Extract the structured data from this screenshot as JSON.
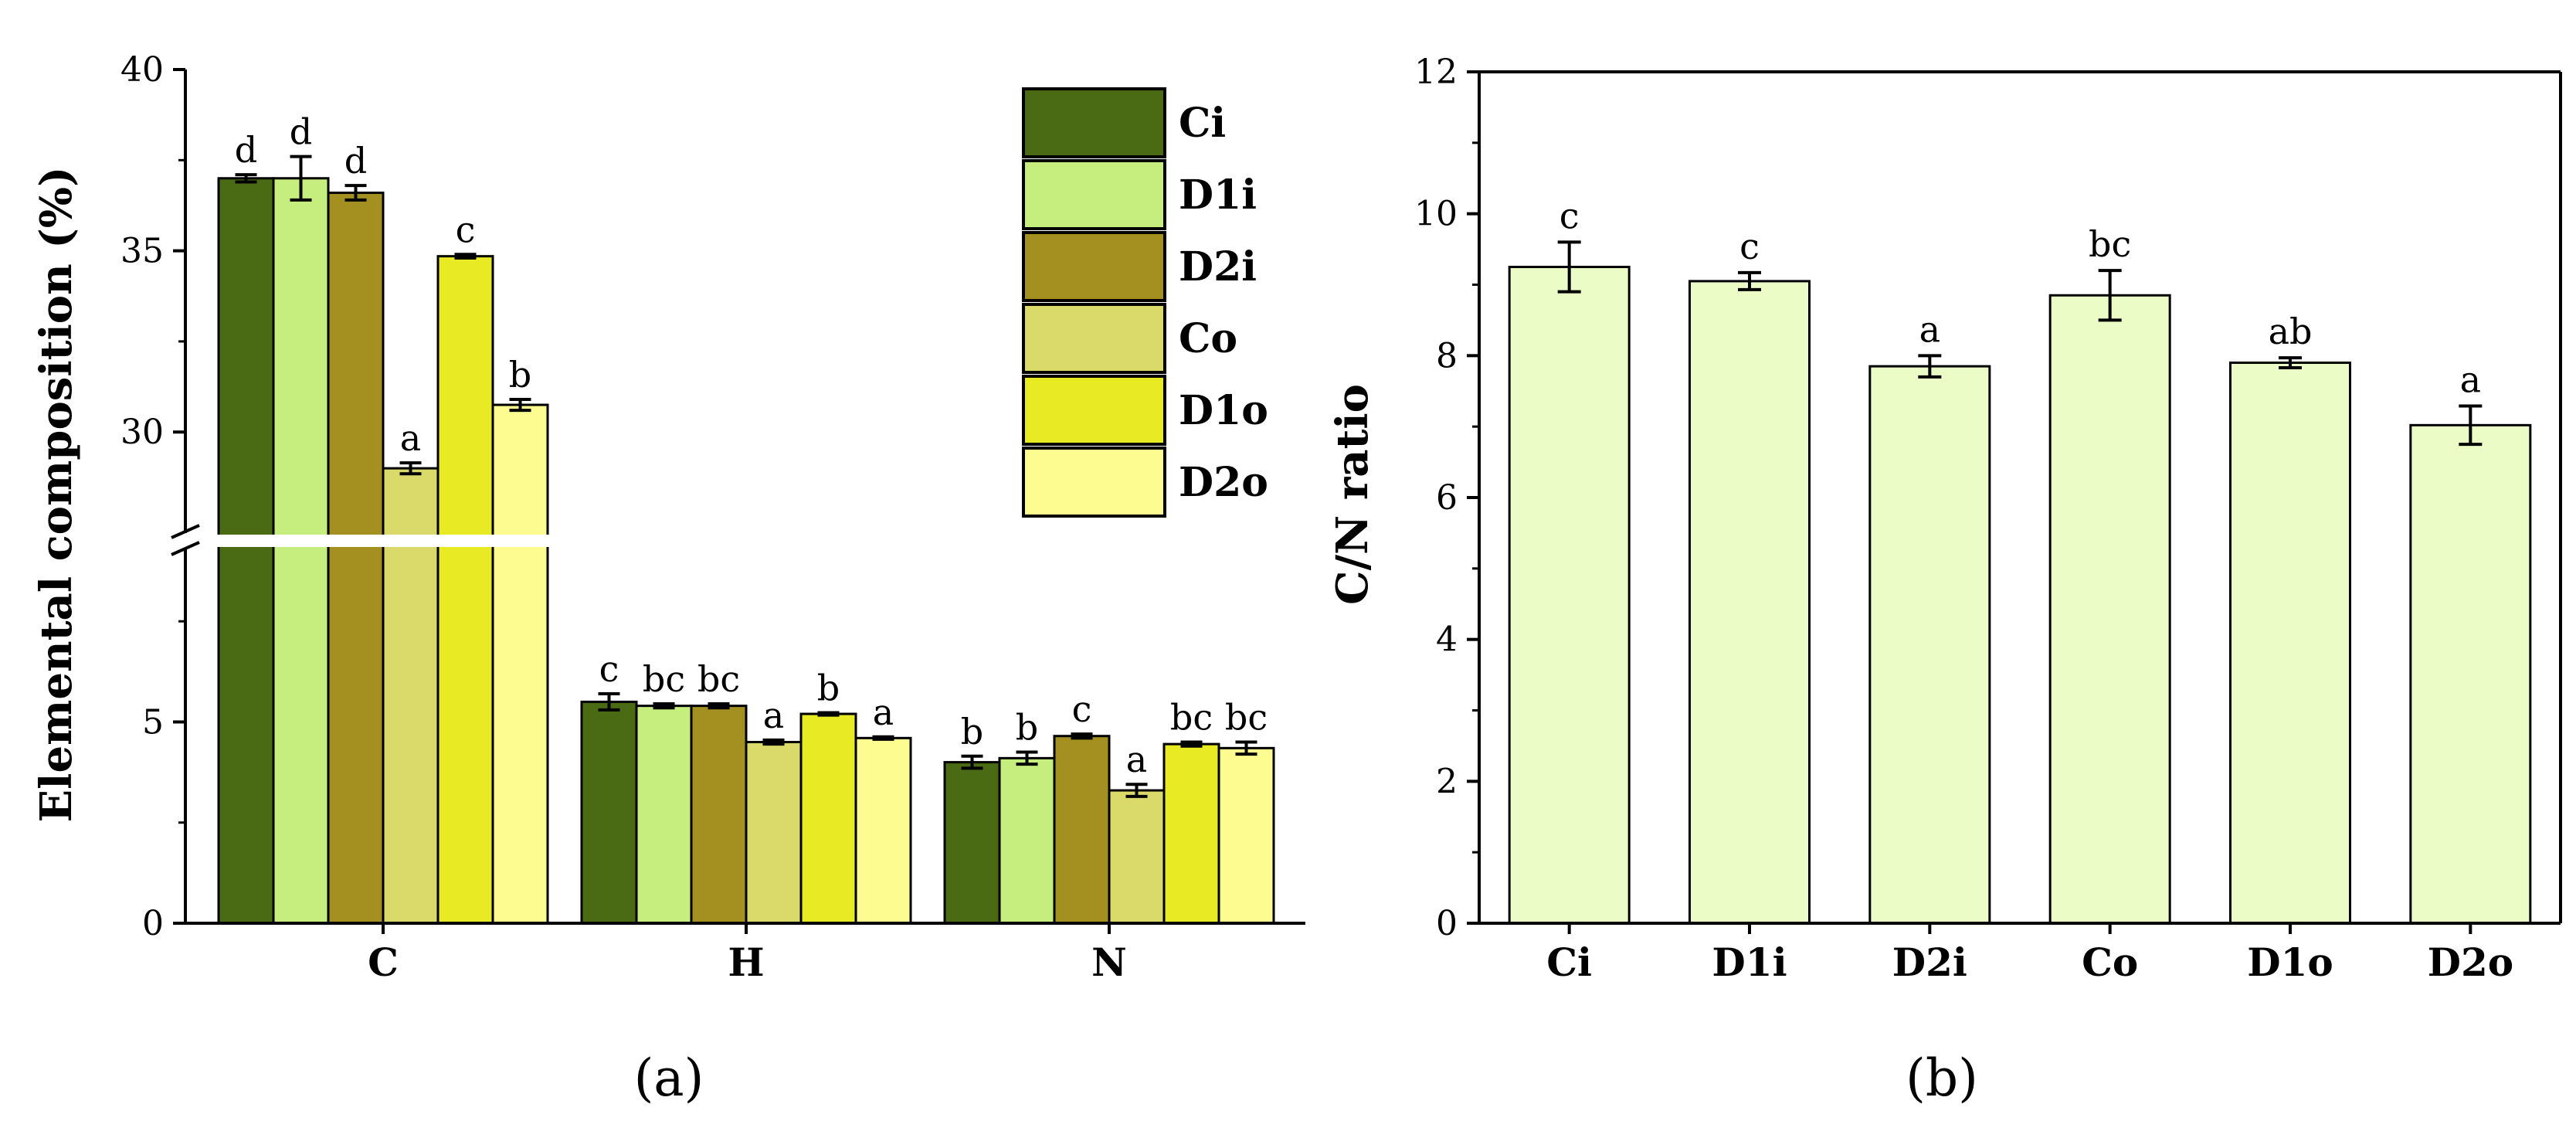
{
  "colors": {
    "Ci": "#4a6b14",
    "D1i": "#c5ee7e",
    "D2i": "#a39021",
    "Co": "#dada6a",
    "D1o": "#e8ea23",
    "D2o": "#fdfc90",
    "panel_b_bar": "#ecfcc7",
    "axis": "#000000"
  },
  "chart_data": [
    {
      "type": "bar",
      "panel": "(a)",
      "ylabel": "Elemental composition (%)",
      "xlabel": "",
      "categories": [
        "C",
        "H",
        "N"
      ],
      "broken_axis": {
        "lower_range": [
          0,
          9.5
        ],
        "upper_range": [
          27,
          40
        ]
      },
      "yticks_lower": [
        "0",
        "5"
      ],
      "yticks_upper": [
        "30",
        "35",
        "40"
      ],
      "legend_position": "top-right",
      "series": [
        {
          "name": "Ci",
          "values": [
            37.0,
            5.5,
            4.0
          ],
          "errors": [
            0.1,
            0.2,
            0.15
          ],
          "letters": [
            "d",
            "c",
            "b"
          ]
        },
        {
          "name": "D1i",
          "values": [
            37.0,
            5.4,
            4.1
          ],
          "errors": [
            0.6,
            0.05,
            0.15
          ],
          "letters": [
            "d",
            "bc",
            "b"
          ]
        },
        {
          "name": "D2i",
          "values": [
            36.6,
            5.4,
            4.65
          ],
          "errors": [
            0.2,
            0.05,
            0.05
          ],
          "letters": [
            "d",
            "bc",
            "c"
          ]
        },
        {
          "name": "Co",
          "values": [
            29.0,
            4.5,
            3.3
          ],
          "errors": [
            0.15,
            0.05,
            0.15
          ],
          "letters": [
            "a",
            "a",
            "a"
          ]
        },
        {
          "name": "D1o",
          "values": [
            34.85,
            5.2,
            4.45
          ],
          "errors": [
            0.05,
            0.03,
            0.05
          ],
          "letters": [
            "c",
            "b",
            "bc"
          ]
        },
        {
          "name": "D2o",
          "values": [
            30.75,
            4.6,
            4.35
          ],
          "errors": [
            0.15,
            0.03,
            0.15
          ],
          "letters": [
            "b",
            "a",
            "bc"
          ]
        }
      ]
    },
    {
      "type": "bar",
      "panel": "(b)",
      "ylabel": "C/N ratio",
      "xlabel": "",
      "categories": [
        "Ci",
        "D1i",
        "D2i",
        "Co",
        "D1o",
        "D2o"
      ],
      "values": [
        9.25,
        9.05,
        7.85,
        8.85,
        7.9,
        7.02
      ],
      "errors": [
        0.35,
        0.12,
        0.15,
        0.35,
        0.07,
        0.27
      ],
      "letters": [
        "c",
        "c",
        "a",
        "bc",
        "ab",
        "a"
      ],
      "ylim": [
        0,
        12
      ],
      "yticks": [
        "0",
        "2",
        "4",
        "6",
        "8",
        "10",
        "12"
      ]
    }
  ]
}
